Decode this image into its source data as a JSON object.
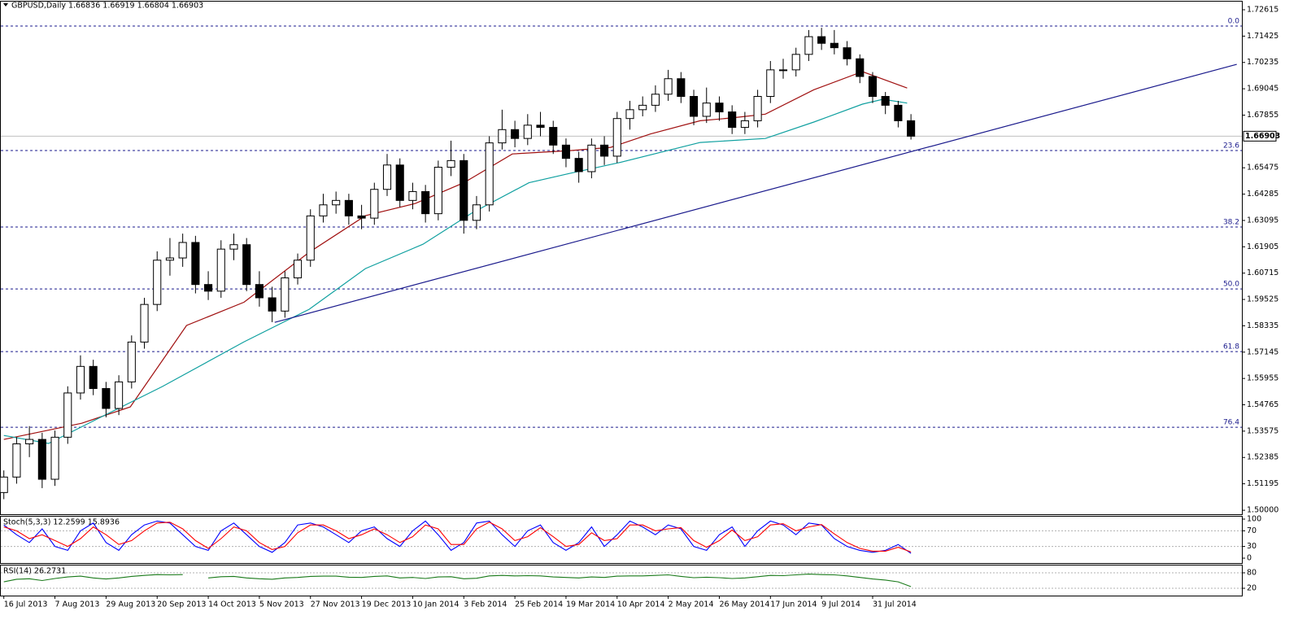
{
  "chart_data": [
    {
      "type": "candlestick",
      "title": "GBPUSD,Daily  1.66836 1.66919 1.66804 1.66903",
      "xlim": [
        -0.3,
        96.9
      ],
      "ylim": [
        1.4982,
        1.7302
      ],
      "yticks": [
        1.72615,
        1.71425,
        1.70235,
        1.69045,
        1.67855,
        1.65475,
        1.64285,
        1.63095,
        1.61905,
        1.60715,
        1.59525,
        1.58335,
        1.57145,
        1.55955,
        1.54765,
        1.53575,
        1.52385,
        1.51195,
        {
          "value": 1.5,
          "label": "1.50000"
        }
      ],
      "xlabels": [
        {
          "label": "16 Jul 2013",
          "index": 0
        },
        {
          "label": "7 Aug 2013",
          "index": 4
        },
        {
          "label": "29 Aug 2013",
          "index": 8
        },
        {
          "label": "20 Sep 2013",
          "index": 12
        },
        {
          "label": "14 Oct 2013",
          "index": 16
        },
        {
          "label": "5 Nov 2013",
          "index": 20
        },
        {
          "label": "27 Nov 2013",
          "index": 24
        },
        {
          "label": "19 Dec 2013",
          "index": 28
        },
        {
          "label": "10 Jan 2014",
          "index": 32
        },
        {
          "label": "3 Feb 2014",
          "index": 36
        },
        {
          "label": "25 Feb 2014",
          "index": 40
        },
        {
          "label": "19 Mar 2014",
          "index": 44
        },
        {
          "label": "10 Apr 2014",
          "index": 48
        },
        {
          "label": "2 May 2014",
          "index": 52
        },
        {
          "label": "26 May 2014",
          "index": 56
        },
        {
          "label": "17 Jun 2014",
          "index": 60
        },
        {
          "label": "9 Jul 2014",
          "index": 64
        },
        {
          "label": "31 Jul 2014",
          "index": 68
        }
      ],
      "candle_color": "#000000",
      "bull_fill": "#ffffff",
      "bear_fill": "#000000",
      "open": [
        1.508,
        1.515,
        1.53,
        1.532,
        1.514,
        1.533,
        1.553,
        1.565,
        1.555,
        1.546,
        1.558,
        1.576,
        1.593,
        1.613,
        1.614,
        1.621,
        1.602,
        1.599,
        1.618,
        1.62,
        1.602,
        1.596,
        1.59,
        1.605,
        1.613,
        1.633,
        1.638,
        1.64,
        1.633,
        1.632,
        1.645,
        1.656,
        1.64,
        1.644,
        1.634,
        1.655,
        1.658,
        1.631,
        1.638,
        1.666,
        1.672,
        1.668,
        1.674,
        1.673,
        1.665,
        1.659,
        1.653,
        1.665,
        1.66,
        1.677,
        1.681,
        1.683,
        1.688,
        1.695,
        1.687,
        1.678,
        1.684,
        1.68,
        1.673,
        1.676,
        1.687,
        1.699,
        1.699,
        1.706,
        1.714,
        1.711,
        1.709,
        1.704,
        1.696,
        1.687,
        1.683,
        1.676
      ],
      "high": [
        1.518,
        1.533,
        1.538,
        1.535,
        1.536,
        1.556,
        1.57,
        1.568,
        1.558,
        1.561,
        1.579,
        1.596,
        1.617,
        1.623,
        1.625,
        1.624,
        1.608,
        1.622,
        1.625,
        1.623,
        1.608,
        1.601,
        1.608,
        1.616,
        1.636,
        1.643,
        1.644,
        1.643,
        1.638,
        1.648,
        1.661,
        1.659,
        1.648,
        1.647,
        1.658,
        1.667,
        1.661,
        1.642,
        1.669,
        1.681,
        1.676,
        1.679,
        1.68,
        1.676,
        1.668,
        1.662,
        1.668,
        1.669,
        1.68,
        1.685,
        1.687,
        1.692,
        1.699,
        1.698,
        1.69,
        1.691,
        1.687,
        1.683,
        1.68,
        1.69,
        1.703,
        1.704,
        1.709,
        1.717,
        1.718,
        1.717,
        1.712,
        1.706,
        1.698,
        1.689,
        1.685,
        1.679
      ],
      "low": [
        1.505,
        1.512,
        1.524,
        1.51,
        1.511,
        1.53,
        1.55,
        1.552,
        1.542,
        1.543,
        1.555,
        1.573,
        1.59,
        1.606,
        1.61,
        1.598,
        1.595,
        1.596,
        1.613,
        1.599,
        1.592,
        1.585,
        1.587,
        1.602,
        1.61,
        1.63,
        1.634,
        1.629,
        1.627,
        1.629,
        1.642,
        1.637,
        1.636,
        1.63,
        1.631,
        1.651,
        1.625,
        1.627,
        1.635,
        1.663,
        1.664,
        1.665,
        1.669,
        1.661,
        1.655,
        1.648,
        1.65,
        1.656,
        1.657,
        1.672,
        1.678,
        1.68,
        1.685,
        1.684,
        1.674,
        1.675,
        1.676,
        1.67,
        1.67,
        1.673,
        1.684,
        1.695,
        1.696,
        1.703,
        1.708,
        1.706,
        1.701,
        1.693,
        1.684,
        1.679,
        1.673,
        1.6675
      ],
      "close": [
        1.515,
        1.53,
        1.532,
        1.514,
        1.533,
        1.553,
        1.565,
        1.555,
        1.546,
        1.558,
        1.576,
        1.593,
        1.613,
        1.614,
        1.621,
        1.602,
        1.599,
        1.618,
        1.62,
        1.602,
        1.596,
        1.59,
        1.605,
        1.613,
        1.633,
        1.638,
        1.64,
        1.633,
        1.632,
        1.645,
        1.656,
        1.64,
        1.644,
        1.634,
        1.655,
        1.658,
        1.631,
        1.638,
        1.666,
        1.672,
        1.668,
        1.674,
        1.673,
        1.665,
        1.659,
        1.653,
        1.665,
        1.66,
        1.677,
        1.681,
        1.683,
        1.688,
        1.695,
        1.687,
        1.678,
        1.684,
        1.68,
        1.673,
        1.676,
        1.687,
        1.699,
        1.699,
        1.706,
        1.714,
        1.711,
        1.709,
        1.704,
        1.696,
        1.687,
        1.683,
        1.676,
        1.66903
      ],
      "moving_averages": [
        {
          "color": "#a01010",
          "x": [
            0,
            6.1,
            9.9,
            14.3,
            18.8,
            23.9,
            28.3,
            32.2,
            36,
            39.8,
            44.3,
            47.5,
            50.6,
            54.5,
            57,
            59.6,
            63.4,
            67.2,
            70.7
          ],
          "values": [
            1.532,
            1.5393,
            1.5467,
            1.5835,
            1.594,
            1.6166,
            1.6331,
            1.6386,
            1.648,
            1.661,
            1.6625,
            1.664,
            1.67,
            1.676,
            1.6773,
            1.679,
            1.69,
            1.6982,
            1.6908
          ]
        },
        {
          "color": "#10a0a0",
          "x": [
            0,
            3.5,
            7.3,
            12.4,
            18.8,
            23.9,
            28.3,
            32.8,
            36.6,
            41.1,
            44.3,
            48.1,
            54.5,
            59.6,
            63.4,
            67.2,
            68.8,
            70.7
          ],
          "values": [
            1.5338,
            1.5302,
            1.5412,
            1.5559,
            1.5761,
            1.5908,
            1.6092,
            1.6202,
            1.6342,
            1.648,
            1.6522,
            1.657,
            1.6662,
            1.668,
            1.6754,
            1.6835,
            1.6857,
            1.684
          ]
        }
      ],
      "trendline": {
        "color": "#1a1a8c",
        "x": [
          21.2,
          96.5
        ],
        "values": [
          1.5849,
          1.7015
        ]
      },
      "fib_color": "#1a1a8c",
      "fib_levels": [
        {
          "label": "0.0",
          "value": 1.7188
        },
        {
          "label": "23.6",
          "value": 1.66253
        },
        {
          "label": "38.2",
          "value": 1.62797
        },
        {
          "label": "50.0",
          "value": 1.60002
        },
        {
          "label": "61.8",
          "value": 1.57171
        },
        {
          "label": "76.4",
          "value": 1.53751
        }
      ],
      "last_price": 1.66903
    },
    {
      "type": "line",
      "title": "Stoch(5,3,3) 12.2599 15.8936",
      "xlim": [
        -0.3,
        96.9
      ],
      "ylim": [
        -12.5,
        108.3
      ],
      "yticks": [
        100,
        70,
        30,
        0
      ],
      "levels": [
        70,
        30
      ],
      "series": [
        {
          "color": "#0000ff",
          "values": [
            85,
            60,
            40,
            75,
            30,
            20,
            70,
            90,
            40,
            20,
            60,
            85,
            95,
            90,
            60,
            30,
            20,
            70,
            90,
            60,
            30,
            15,
            40,
            85,
            90,
            80,
            60,
            40,
            70,
            80,
            50,
            30,
            70,
            95,
            60,
            20,
            40,
            90,
            95,
            60,
            30,
            70,
            85,
            40,
            20,
            40,
            80,
            30,
            60,
            95,
            80,
            60,
            85,
            75,
            30,
            20,
            60,
            80,
            30,
            70,
            95,
            85,
            60,
            90,
            85,
            50,
            30,
            20,
            15,
            20,
            35,
            12.2599
          ]
        },
        {
          "color": "#ff0000",
          "values": [
            80,
            70,
            50,
            60,
            45,
            30,
            50,
            80,
            60,
            35,
            45,
            70,
            90,
            92,
            75,
            45,
            25,
            50,
            80,
            70,
            40,
            22,
            30,
            65,
            85,
            85,
            70,
            50,
            60,
            75,
            60,
            40,
            55,
            85,
            75,
            35,
            35,
            75,
            92,
            75,
            45,
            55,
            78,
            55,
            30,
            35,
            65,
            45,
            50,
            85,
            85,
            70,
            75,
            78,
            45,
            28,
            45,
            72,
            45,
            55,
            85,
            88,
            70,
            80,
            86,
            62,
            40,
            25,
            18,
            18,
            28,
            15.8936
          ]
        }
      ]
    },
    {
      "type": "line",
      "title": "RSI(14) 26.2731",
      "xlim": [
        -0.3,
        96.9
      ],
      "ylim": [
        -8.4,
        111.6
      ],
      "yticks": [
        80,
        20
      ],
      "levels": [
        80,
        20
      ],
      "series": [
        {
          "color": "#1a7a1a",
          "values": [
            45,
            55,
            57,
            50,
            58,
            64,
            67,
            60,
            56,
            60,
            66,
            70,
            73,
            72,
            73,
            null,
            60,
            65,
            66,
            60,
            57,
            55,
            60,
            62,
            66,
            67,
            67,
            63,
            62,
            66,
            68,
            60,
            62,
            58,
            64,
            65,
            57,
            59,
            68,
            70,
            68,
            69,
            68,
            64,
            62,
            60,
            64,
            62,
            67,
            68,
            68,
            70,
            72,
            66,
            61,
            63,
            61,
            58,
            60,
            65,
            70,
            69,
            72,
            75,
            73,
            72,
            68,
            62,
            56,
            52,
            45,
            26.2731
          ]
        }
      ]
    }
  ]
}
